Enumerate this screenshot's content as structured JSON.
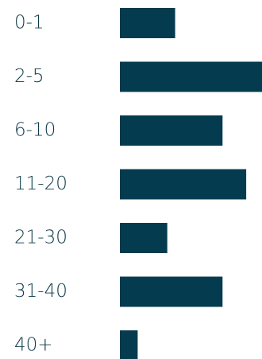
{
  "chart_data": {
    "type": "bar",
    "orientation": "horizontal",
    "categories": [
      "0-1",
      "2-5",
      "6-10",
      "11-20",
      "21-30",
      "31-40",
      "40+"
    ],
    "values": [
      14,
      36,
      26,
      32,
      12,
      26,
      4.5
    ],
    "xlim": [
      0,
      36
    ],
    "bar_color": "#053b4f",
    "label_color": "#0f3a4a",
    "title": "",
    "xlabel": "",
    "ylabel": "",
    "grid": false,
    "legend": "none"
  }
}
